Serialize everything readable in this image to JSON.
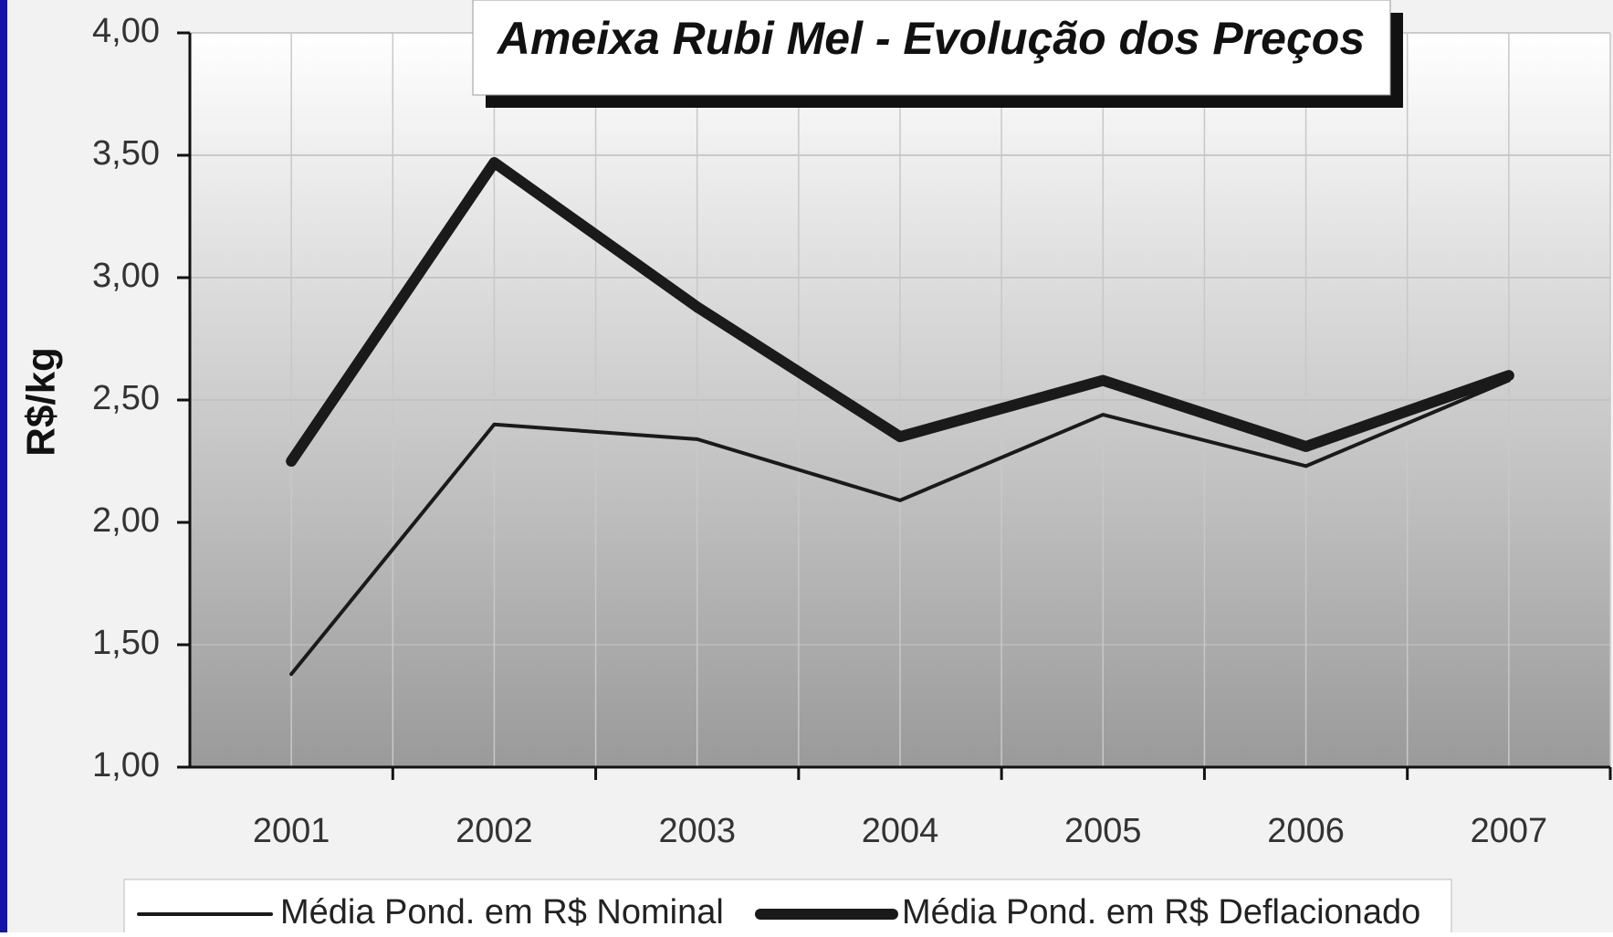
{
  "chart_data": {
    "type": "line",
    "title": "Ameixa Rubi Mel - Evolução dos Preços",
    "y_label": "R$/kg",
    "categories": [
      "2001",
      "2002",
      "2003",
      "2004",
      "2005",
      "2006",
      "2007"
    ],
    "series": [
      {
        "name": "Média Pond. em R$ Nominal",
        "color": "#1a1a1a",
        "values": [
          1.38,
          2.4,
          2.34,
          2.09,
          2.44,
          2.23,
          2.58
        ]
      },
      {
        "name": "Média Pond. em R$ Deflacionado",
        "color": "#1a1a1a",
        "values": [
          2.25,
          3.47,
          2.88,
          2.35,
          2.58,
          2.31,
          2.6
        ]
      }
    ],
    "ylim": [
      1,
      4
    ],
    "yticks": [
      {
        "value": 1,
        "label": "1,00"
      },
      {
        "value": 1.5,
        "label": "1,50"
      },
      {
        "value": 2,
        "label": "2,00"
      },
      {
        "value": 2.5,
        "label": "2,50"
      },
      {
        "value": 3,
        "label": "3,00"
      },
      {
        "value": 3.5,
        "label": "3,50"
      },
      {
        "value": 4,
        "label": "4,00"
      }
    ],
    "grid": true
  }
}
